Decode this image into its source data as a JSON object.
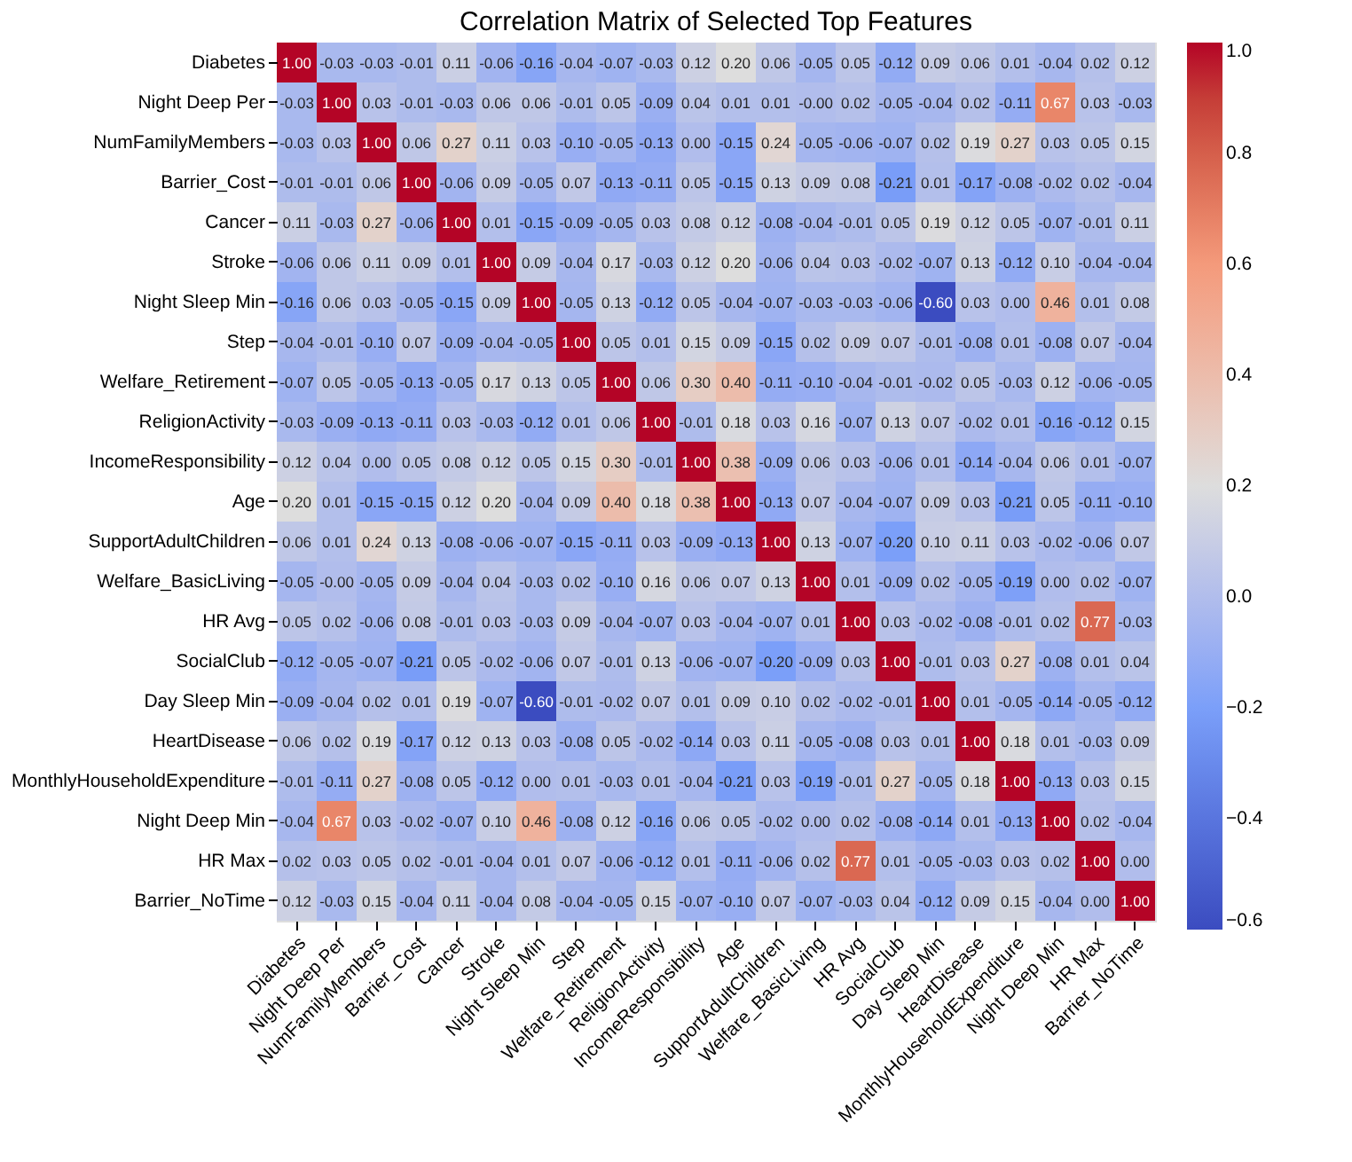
{
  "chart_data": {
    "type": "heatmap",
    "title": "Correlation Matrix of Selected Top Features",
    "categories": [
      "Diabetes",
      "Night Deep Per",
      "NumFamilyMembers",
      "Barrier_Cost",
      "Cancer",
      "Stroke",
      "Night Sleep Min",
      "Step",
      "Welfare_Retirement",
      "ReligionActivity",
      "IncomeResponsibility",
      "Age",
      "SupportAdultChildren",
      "Welfare_BasicLiving",
      "HR Avg",
      "SocialClub",
      "Day Sleep Min",
      "HeartDisease",
      "MonthlyHouseholdExpenditure",
      "Night Deep Min",
      "HR Max",
      "Barrier_NoTime"
    ],
    "y_categories": [
      "Diabetes",
      "Night Deep Per",
      "NumFamilyMembers",
      "Barrier_Cost",
      "Cancer",
      "Stroke",
      "Night Sleep Min",
      "Step",
      "Welfare_Retirement",
      "ReligionActivity",
      "IncomeResponsibility",
      "Age",
      "SupportAdultChildren",
      "Welfare_BasicLiving",
      "HR Avg",
      "SocialClub",
      "Day Sleep Min",
      "HeartDisease",
      "MonthlyHouseholdExpenditure",
      "Night Deep Min",
      "HR Max",
      "Barrier_NoTime"
    ],
    "cells": [
      [
        1.0,
        -0.03,
        -0.03,
        -0.01,
        0.11,
        -0.06,
        -0.16,
        -0.04,
        -0.07,
        -0.03,
        0.12,
        0.2,
        0.06,
        -0.05,
        0.05,
        -0.12,
        0.09,
        0.06,
        0.01,
        -0.04,
        0.02,
        0.12
      ],
      [
        -0.03,
        1.0,
        0.03,
        -0.01,
        -0.03,
        0.06,
        0.06,
        -0.01,
        0.05,
        -0.09,
        0.04,
        0.01,
        0.01,
        -0.0,
        0.02,
        -0.05,
        -0.04,
        0.02,
        -0.11,
        0.67,
        0.03,
        -0.03
      ],
      [
        -0.03,
        0.03,
        1.0,
        0.06,
        0.27,
        0.11,
        0.03,
        -0.1,
        -0.05,
        -0.13,
        0.0,
        -0.15,
        0.24,
        -0.05,
        -0.06,
        -0.07,
        0.02,
        0.19,
        0.27,
        0.03,
        0.05,
        0.15
      ],
      [
        -0.01,
        -0.01,
        0.06,
        1.0,
        -0.06,
        0.09,
        -0.05,
        0.07,
        -0.13,
        -0.11,
        0.05,
        -0.15,
        0.13,
        0.09,
        0.08,
        -0.21,
        0.01,
        -0.17,
        -0.08,
        -0.02,
        0.02,
        -0.04
      ],
      [
        0.11,
        -0.03,
        0.27,
        -0.06,
        1.0,
        0.01,
        -0.15,
        -0.09,
        -0.05,
        0.03,
        0.08,
        0.12,
        -0.08,
        -0.04,
        -0.01,
        0.05,
        0.19,
        0.12,
        0.05,
        -0.07,
        -0.01,
        0.11
      ],
      [
        -0.06,
        0.06,
        0.11,
        0.09,
        0.01,
        1.0,
        0.09,
        -0.04,
        0.17,
        -0.03,
        0.12,
        0.2,
        -0.06,
        0.04,
        0.03,
        -0.02,
        -0.07,
        0.13,
        -0.12,
        0.1,
        -0.04,
        -0.04
      ],
      [
        -0.16,
        0.06,
        0.03,
        -0.05,
        -0.15,
        0.09,
        1.0,
        -0.05,
        0.13,
        -0.12,
        0.05,
        -0.04,
        -0.07,
        -0.03,
        -0.03,
        -0.06,
        -0.6,
        0.03,
        0.0,
        0.46,
        0.01,
        0.08
      ],
      [
        -0.04,
        -0.01,
        -0.1,
        0.07,
        -0.09,
        -0.04,
        -0.05,
        1.0,
        0.05,
        0.01,
        0.15,
        0.09,
        -0.15,
        0.02,
        0.09,
        0.07,
        -0.01,
        -0.08,
        0.01,
        -0.08,
        0.07,
        -0.04
      ],
      [
        -0.07,
        0.05,
        -0.05,
        -0.13,
        -0.05,
        0.17,
        0.13,
        0.05,
        1.0,
        0.06,
        0.3,
        0.4,
        -0.11,
        -0.1,
        -0.04,
        -0.01,
        -0.02,
        0.05,
        -0.03,
        0.12,
        -0.06,
        -0.05
      ],
      [
        -0.03,
        -0.09,
        -0.13,
        -0.11,
        0.03,
        -0.03,
        -0.12,
        0.01,
        0.06,
        1.0,
        -0.01,
        0.18,
        0.03,
        0.16,
        -0.07,
        0.13,
        0.07,
        -0.02,
        0.01,
        -0.16,
        -0.12,
        0.15
      ],
      [
        0.12,
        0.04,
        0.0,
        0.05,
        0.08,
        0.12,
        0.05,
        0.15,
        0.3,
        -0.01,
        1.0,
        0.38,
        -0.09,
        0.06,
        0.03,
        -0.06,
        0.01,
        -0.14,
        -0.04,
        0.06,
        0.01,
        -0.07
      ],
      [
        0.2,
        0.01,
        -0.15,
        -0.15,
        0.12,
        0.2,
        -0.04,
        0.09,
        0.4,
        0.18,
        0.38,
        1.0,
        -0.13,
        0.07,
        -0.04,
        -0.07,
        0.09,
        0.03,
        -0.21,
        0.05,
        -0.11,
        -0.1
      ],
      [
        0.06,
        0.01,
        0.24,
        0.13,
        -0.08,
        -0.06,
        -0.07,
        -0.15,
        -0.11,
        0.03,
        -0.09,
        -0.13,
        1.0,
        0.13,
        -0.07,
        -0.2,
        0.1,
        0.11,
        0.03,
        -0.02,
        -0.06,
        0.07
      ],
      [
        -0.05,
        -0.0,
        -0.05,
        0.09,
        -0.04,
        0.04,
        -0.03,
        0.02,
        -0.1,
        0.16,
        0.06,
        0.07,
        0.13,
        1.0,
        0.01,
        -0.09,
        0.02,
        -0.05,
        -0.19,
        0.0,
        0.02,
        -0.07
      ],
      [
        0.05,
        0.02,
        -0.06,
        0.08,
        -0.01,
        0.03,
        -0.03,
        0.09,
        -0.04,
        -0.07,
        0.03,
        -0.04,
        -0.07,
        0.01,
        1.0,
        0.03,
        -0.02,
        -0.08,
        -0.01,
        0.02,
        0.77,
        -0.03
      ],
      [
        -0.12,
        -0.05,
        -0.07,
        -0.21,
        0.05,
        -0.02,
        -0.06,
        0.07,
        -0.01,
        0.13,
        -0.06,
        -0.07,
        -0.2,
        -0.09,
        0.03,
        1.0,
        -0.01,
        0.03,
        0.27,
        -0.08,
        0.01,
        0.04
      ],
      [
        -0.09,
        -0.04,
        0.02,
        0.01,
        0.19,
        -0.07,
        -0.6,
        -0.01,
        -0.02,
        0.07,
        0.01,
        0.09,
        0.1,
        0.02,
        -0.02,
        -0.01,
        1.0,
        0.01,
        -0.05,
        -0.14,
        -0.05,
        -0.12
      ],
      [
        0.06,
        0.02,
        0.19,
        -0.17,
        0.12,
        0.13,
        0.03,
        -0.08,
        0.05,
        -0.02,
        -0.14,
        0.03,
        0.11,
        -0.05,
        -0.08,
        0.03,
        0.01,
        1.0,
        0.18,
        0.01,
        -0.03,
        0.09
      ],
      [
        -0.01,
        -0.11,
        0.27,
        -0.08,
        0.05,
        -0.12,
        0.0,
        0.01,
        -0.03,
        0.01,
        -0.04,
        -0.21,
        0.03,
        -0.19,
        -0.01,
        0.27,
        -0.05,
        0.18,
        1.0,
        -0.13,
        0.03,
        0.15
      ],
      [
        -0.04,
        0.67,
        0.03,
        -0.02,
        -0.07,
        0.1,
        0.46,
        -0.08,
        0.12,
        -0.16,
        0.06,
        0.05,
        -0.02,
        0.0,
        0.02,
        -0.08,
        -0.14,
        0.01,
        -0.13,
        1.0,
        0.02,
        -0.04
      ],
      [
        0.02,
        0.03,
        0.05,
        0.02,
        -0.01,
        -0.04,
        0.01,
        0.07,
        -0.06,
        -0.12,
        0.01,
        -0.11,
        -0.06,
        0.02,
        0.77,
        0.01,
        -0.05,
        -0.03,
        0.03,
        0.02,
        1.0,
        0.0
      ],
      [
        0.12,
        -0.03,
        0.15,
        -0.04,
        0.11,
        -0.04,
        0.08,
        -0.04,
        -0.05,
        0.15,
        -0.07,
        -0.1,
        0.07,
        -0.07,
        -0.03,
        0.04,
        -0.12,
        0.09,
        0.15,
        -0.04,
        0.0,
        1.0
      ]
    ],
    "cell_labels": [
      [
        "1.00",
        "-0.03",
        "-0.03",
        "-0.01",
        "0.11",
        "-0.06",
        "-0.16",
        "-0.04",
        "-0.07",
        "-0.03",
        "0.12",
        "0.20",
        "0.06",
        "-0.05",
        "0.05",
        "-0.12",
        "0.09",
        "0.06",
        "0.01",
        "-0.04",
        "0.02",
        "0.12"
      ],
      [
        "-0.03",
        "1.00",
        "0.03",
        "-0.01",
        "-0.03",
        "0.06",
        "0.06",
        "-0.01",
        "0.05",
        "-0.09",
        "0.04",
        "0.01",
        "0.01",
        "-0.00",
        "0.02",
        "-0.05",
        "-0.04",
        "0.02",
        "-0.11",
        "0.67",
        "0.03",
        "-0.03"
      ],
      [
        "-0.03",
        "0.03",
        "1.00",
        "0.06",
        "0.27",
        "0.11",
        "0.03",
        "-0.10",
        "-0.05",
        "-0.13",
        "0.00",
        "-0.15",
        "0.24",
        "-0.05",
        "-0.06",
        "-0.07",
        "0.02",
        "0.19",
        "0.27",
        "0.03",
        "0.05",
        "0.15"
      ],
      [
        "-0.01",
        "-0.01",
        "0.06",
        "1.00",
        "-0.06",
        "0.09",
        "-0.05",
        "0.07",
        "-0.13",
        "-0.11",
        "0.05",
        "-0.15",
        "0.13",
        "0.09",
        "0.08",
        "-0.21",
        "0.01",
        "-0.17",
        "-0.08",
        "-0.02",
        "0.02",
        "-0.04"
      ],
      [
        "0.11",
        "-0.03",
        "0.27",
        "-0.06",
        "1.00",
        "0.01",
        "-0.15",
        "-0.09",
        "-0.05",
        "0.03",
        "0.08",
        "0.12",
        "-0.08",
        "-0.04",
        "-0.01",
        "0.05",
        "0.19",
        "0.12",
        "0.05",
        "-0.07",
        "-0.01",
        "0.11"
      ],
      [
        "-0.06",
        "0.06",
        "0.11",
        "0.09",
        "0.01",
        "1.00",
        "0.09",
        "-0.04",
        "0.17",
        "-0.03",
        "0.12",
        "0.20",
        "-0.06",
        "0.04",
        "0.03",
        "-0.02",
        "-0.07",
        "0.13",
        "-0.12",
        "0.10",
        "-0.04",
        "-0.04"
      ],
      [
        "-0.16",
        "0.06",
        "0.03",
        "-0.05",
        "-0.15",
        "0.09",
        "1.00",
        "-0.05",
        "0.13",
        "-0.12",
        "0.05",
        "-0.04",
        "-0.07",
        "-0.03",
        "-0.03",
        "-0.06",
        "-0.60",
        "0.03",
        "0.00",
        "0.46",
        "0.01",
        "0.08"
      ],
      [
        "-0.04",
        "-0.01",
        "-0.10",
        "0.07",
        "-0.09",
        "-0.04",
        "-0.05",
        "1.00",
        "0.05",
        "0.01",
        "0.15",
        "0.09",
        "-0.15",
        "0.02",
        "0.09",
        "0.07",
        "-0.01",
        "-0.08",
        "0.01",
        "-0.08",
        "0.07",
        "-0.04"
      ],
      [
        "-0.07",
        "0.05",
        "-0.05",
        "-0.13",
        "-0.05",
        "0.17",
        "0.13",
        "0.05",
        "1.00",
        "0.06",
        "0.30",
        "0.40",
        "-0.11",
        "-0.10",
        "-0.04",
        "-0.01",
        "-0.02",
        "0.05",
        "-0.03",
        "0.12",
        "-0.06",
        "-0.05"
      ],
      [
        "-0.03",
        "-0.09",
        "-0.13",
        "-0.11",
        "0.03",
        "-0.03",
        "-0.12",
        "0.01",
        "0.06",
        "1.00",
        "-0.01",
        "0.18",
        "0.03",
        "0.16",
        "-0.07",
        "0.13",
        "0.07",
        "-0.02",
        "0.01",
        "-0.16",
        "-0.12",
        "0.15"
      ],
      [
        "0.12",
        "0.04",
        "0.00",
        "0.05",
        "0.08",
        "0.12",
        "0.05",
        "0.15",
        "0.30",
        "-0.01",
        "1.00",
        "0.38",
        "-0.09",
        "0.06",
        "0.03",
        "-0.06",
        "0.01",
        "-0.14",
        "-0.04",
        "0.06",
        "0.01",
        "-0.07"
      ],
      [
        "0.20",
        "0.01",
        "-0.15",
        "-0.15",
        "0.12",
        "0.20",
        "-0.04",
        "0.09",
        "0.40",
        "0.18",
        "0.38",
        "1.00",
        "-0.13",
        "0.07",
        "-0.04",
        "-0.07",
        "0.09",
        "0.03",
        "-0.21",
        "0.05",
        "-0.11",
        "-0.10"
      ],
      [
        "0.06",
        "0.01",
        "0.24",
        "0.13",
        "-0.08",
        "-0.06",
        "-0.07",
        "-0.15",
        "-0.11",
        "0.03",
        "-0.09",
        "-0.13",
        "1.00",
        "0.13",
        "-0.07",
        "-0.20",
        "0.10",
        "0.11",
        "0.03",
        "-0.02",
        "-0.06",
        "0.07"
      ],
      [
        "-0.05",
        "-0.00",
        "-0.05",
        "0.09",
        "-0.04",
        "0.04",
        "-0.03",
        "0.02",
        "-0.10",
        "0.16",
        "0.06",
        "0.07",
        "0.13",
        "1.00",
        "0.01",
        "-0.09",
        "0.02",
        "-0.05",
        "-0.19",
        "0.00",
        "0.02",
        "-0.07"
      ],
      [
        "0.05",
        "0.02",
        "-0.06",
        "0.08",
        "-0.01",
        "0.03",
        "-0.03",
        "0.09",
        "-0.04",
        "-0.07",
        "0.03",
        "-0.04",
        "-0.07",
        "0.01",
        "1.00",
        "0.03",
        "-0.02",
        "-0.08",
        "-0.01",
        "0.02",
        "0.77",
        "-0.03"
      ],
      [
        "-0.12",
        "-0.05",
        "-0.07",
        "-0.21",
        "0.05",
        "-0.02",
        "-0.06",
        "0.07",
        "-0.01",
        "0.13",
        "-0.06",
        "-0.07",
        "-0.20",
        "-0.09",
        "0.03",
        "1.00",
        "-0.01",
        "0.03",
        "0.27",
        "-0.08",
        "0.01",
        "0.04"
      ],
      [
        "-0.09",
        "-0.04",
        "0.02",
        "0.01",
        "0.19",
        "-0.07",
        "-0.60",
        "-0.01",
        "-0.02",
        "0.07",
        "0.01",
        "0.09",
        "0.10",
        "0.02",
        "-0.02",
        "-0.01",
        "1.00",
        "0.01",
        "-0.05",
        "-0.14",
        "-0.05",
        "-0.12"
      ],
      [
        "0.06",
        "0.02",
        "0.19",
        "-0.17",
        "0.12",
        "0.13",
        "0.03",
        "-0.08",
        "0.05",
        "-0.02",
        "-0.14",
        "0.03",
        "0.11",
        "-0.05",
        "-0.08",
        "0.03",
        "0.01",
        "1.00",
        "0.18",
        "0.01",
        "-0.03",
        "0.09"
      ],
      [
        "-0.01",
        "-0.11",
        "0.27",
        "-0.08",
        "0.05",
        "-0.12",
        "0.00",
        "0.01",
        "-0.03",
        "0.01",
        "-0.04",
        "-0.21",
        "0.03",
        "-0.19",
        "-0.01",
        "0.27",
        "-0.05",
        "0.18",
        "1.00",
        "-0.13",
        "0.03",
        "0.15"
      ],
      [
        "-0.04",
        "0.67",
        "0.03",
        "-0.02",
        "-0.07",
        "0.10",
        "0.46",
        "-0.08",
        "0.12",
        "-0.16",
        "0.06",
        "0.05",
        "-0.02",
        "0.00",
        "0.02",
        "-0.08",
        "-0.14",
        "0.01",
        "-0.13",
        "1.00",
        "0.02",
        "-0.04"
      ],
      [
        "0.02",
        "0.03",
        "0.05",
        "0.02",
        "-0.01",
        "-0.04",
        "0.01",
        "0.07",
        "-0.06",
        "-0.12",
        "0.01",
        "-0.11",
        "-0.06",
        "0.02",
        "0.77",
        "0.01",
        "-0.05",
        "-0.03",
        "0.03",
        "0.02",
        "1.00",
        "0.00"
      ],
      [
        "0.12",
        "-0.03",
        "0.15",
        "-0.04",
        "0.11",
        "-0.04",
        "0.08",
        "-0.04",
        "-0.05",
        "0.15",
        "-0.07",
        "-0.10",
        "0.07",
        "-0.07",
        "-0.03",
        "0.04",
        "-0.12",
        "0.09",
        "0.15",
        "-0.04",
        "0.00",
        "1.00"
      ]
    ],
    "clim": [
      -0.6,
      1.0
    ],
    "cticks": [
      {
        "value": -0.6,
        "label": "−0.6"
      },
      {
        "value": -0.4,
        "label": "−0.4"
      },
      {
        "value": -0.2,
        "label": "−0.2"
      },
      {
        "value": 0.0,
        "label": "0.0"
      },
      {
        "value": 0.2,
        "label": "0.2"
      },
      {
        "value": 0.4,
        "label": "0.4"
      },
      {
        "value": 0.6,
        "label": "0.6"
      },
      {
        "value": 0.8,
        "label": "0.8"
      },
      {
        "value": 1.0,
        "label": "1.0"
      }
    ],
    "data_labels": true
  }
}
